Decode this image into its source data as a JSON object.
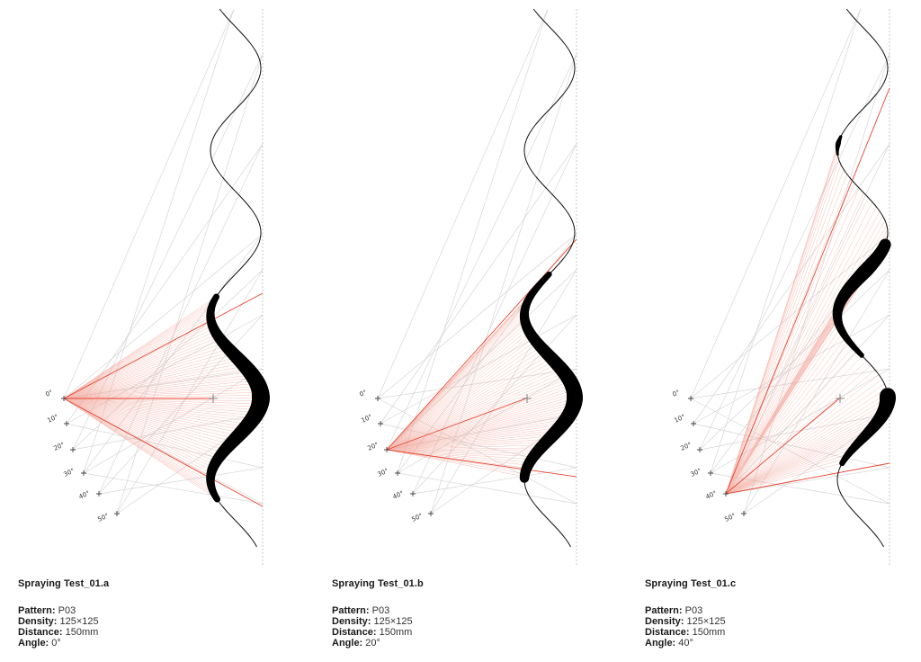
{
  "panels": [
    {
      "title": "Spraying Test_01.a",
      "pattern_label": "Pattern:",
      "pattern": "P03",
      "density_label": "Density:",
      "density": "125×125",
      "distance_label": "Distance:",
      "distance": "150mm",
      "angle_label": "Angle:",
      "angle": "0°",
      "angle_deg": 0
    },
    {
      "title": "Spraying Test_01.b",
      "pattern_label": "Pattern:",
      "pattern": "P03",
      "density_label": "Density:",
      "density": "125×125",
      "distance_label": "Distance:",
      "distance": "150mm",
      "angle_label": "Angle:",
      "angle": "20°",
      "angle_deg": 20
    },
    {
      "title": "Spraying Test_01.c",
      "pattern_label": "Pattern:",
      "pattern": "P03",
      "density_label": "Density:",
      "density": "125×125",
      "distance_label": "Distance:",
      "distance": "150mm",
      "angle_label": "Angle:",
      "angle": "40°",
      "angle_deg": 40
    }
  ],
  "nozzle_angles": [
    "0°",
    "10°",
    "20°",
    "30°",
    "40°",
    "50°"
  ],
  "colors": {
    "spray_edge": "#e8432f",
    "spray_fill": "#f2a093",
    "surface": "#111111",
    "coating": "#000000",
    "guide": "#d6d6d6"
  }
}
